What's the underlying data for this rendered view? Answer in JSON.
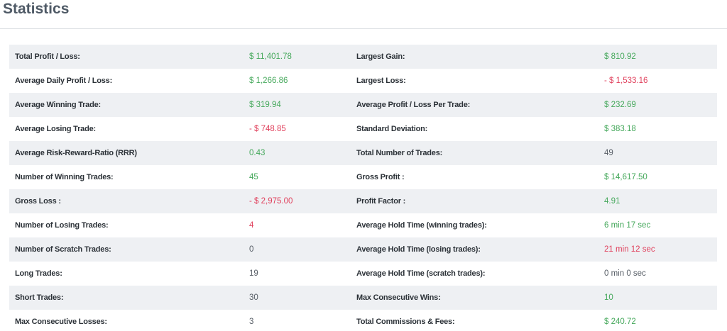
{
  "title": "Statistics",
  "colors": {
    "positive": "#45a85b",
    "negative": "#e0405c",
    "neutral": "#575e66"
  },
  "rows": [
    {
      "l1": "Total Profit / Loss:",
      "v1": "$ 11,401.78",
      "s1": "pos",
      "l2": "Largest Gain:",
      "v2": "$ 810.92",
      "s2": "pos"
    },
    {
      "l1": "Average Daily Profit / Loss:",
      "v1": "$ 1,266.86",
      "s1": "pos",
      "l2": "Largest Loss:",
      "v2": "- $ 1,533.16",
      "s2": "neg"
    },
    {
      "l1": "Average Winning Trade:",
      "v1": "$ 319.94",
      "s1": "pos",
      "l2": "Average Profit / Loss Per Trade:",
      "v2": "$ 232.69",
      "s2": "pos"
    },
    {
      "l1": "Average Losing Trade:",
      "v1": "- $ 748.85",
      "s1": "neg",
      "l2": "Standard Deviation:",
      "v2": "$ 383.18",
      "s2": "pos"
    },
    {
      "l1": "Average Risk-Reward-Ratio (RRR)",
      "v1": "0.43",
      "s1": "pos",
      "l2": "Total Number of Trades:",
      "v2": "49",
      "s2": "neutral"
    },
    {
      "l1": "Number of Winning Trades:",
      "v1": "45",
      "s1": "pos",
      "l2": "Gross Profit :",
      "v2": "$ 14,617.50",
      "s2": "pos"
    },
    {
      "l1": "Gross Loss :",
      "v1": "- $ 2,975.00",
      "s1": "neg",
      "l2": "Profit Factor :",
      "v2": "4.91",
      "s2": "pos"
    },
    {
      "l1": "Number of Losing Trades:",
      "v1": "4",
      "s1": "neg",
      "l2": "Average Hold Time (winning trades):",
      "v2": "6 min 17 sec",
      "s2": "pos"
    },
    {
      "l1": "Number of Scratch Trades:",
      "v1": "0",
      "s1": "neutral",
      "l2": "Average Hold Time (losing trades):",
      "v2": "21 min 12 sec",
      "s2": "neg"
    },
    {
      "l1": "Long Trades:",
      "v1": "19",
      "s1": "neutral",
      "l2": "Average Hold Time (scratch trades):",
      "v2": "0 min 0 sec",
      "s2": "neutral"
    },
    {
      "l1": "Short Trades:",
      "v1": "30",
      "s1": "neutral",
      "l2": "Max Consecutive Wins:",
      "v2": "10",
      "s2": "pos"
    },
    {
      "l1": "Max Consecutive Losses:",
      "v1": "3",
      "s1": "neutral",
      "l2": "Total Commissions & Fees:",
      "v2": "$ 240.72",
      "s2": "pos"
    }
  ]
}
